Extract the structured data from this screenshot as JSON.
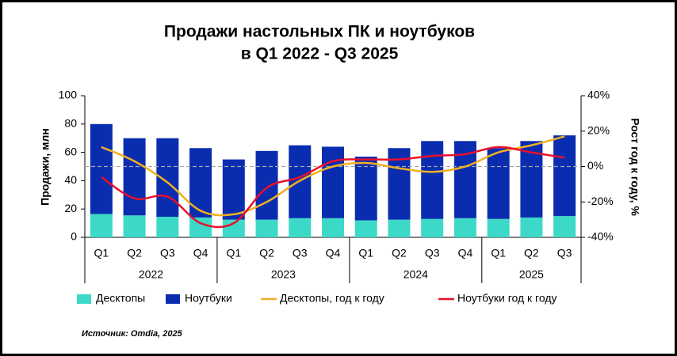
{
  "chart_data": {
    "type": "bar-line",
    "title": [
      "Продажи настольных ПК и ноутбуков",
      "в Q1 2022 - Q3 2025"
    ],
    "ylabel": "Продажи, млн",
    "y2label": "Рост год к году, %",
    "source": "Источник: Omdia, 2025",
    "groups": [
      {
        "label": "2022",
        "categories": [
          "Q1",
          "Q2",
          "Q3",
          "Q4"
        ]
      },
      {
        "label": "2023",
        "categories": [
          "Q1",
          "Q2",
          "Q3",
          "Q4"
        ]
      },
      {
        "label": "2024",
        "categories": [
          "Q1",
          "Q2",
          "Q3",
          "Q4"
        ]
      },
      {
        "label": "2025",
        "categories": [
          "Q1",
          "Q2",
          "Q3"
        ]
      }
    ],
    "ylim": [
      0,
      100
    ],
    "yticks": [
      0,
      20,
      40,
      60,
      80,
      100
    ],
    "y2lim": [
      -40,
      40
    ],
    "y2ticks": [
      {
        "value": -40,
        "label": "-40%"
      },
      {
        "value": -20,
        "label": "-20%"
      },
      {
        "value": 0,
        "label": "0%"
      },
      {
        "value": 20,
        "label": "20%"
      },
      {
        "value": 40,
        "label": "40%"
      }
    ],
    "series": [
      {
        "name": "Десктопы",
        "type": "bar",
        "color": "#3dd9c8",
        "values": [
          16.5,
          15.5,
          14.5,
          14,
          12.5,
          12.5,
          13.5,
          13.5,
          12,
          12.5,
          13,
          13.5,
          13,
          14,
          15
        ]
      },
      {
        "name": "Ноутбуки",
        "type": "bar",
        "color": "#0a2db0",
        "values": [
          63.5,
          54.5,
          55.5,
          49,
          42.5,
          48.5,
          51.5,
          50.5,
          45,
          50.5,
          55,
          54.5,
          50,
          54,
          57
        ]
      },
      {
        "name": "Десктопы, год к году",
        "type": "line",
        "axis": "y2",
        "color": "#f0b020",
        "values": [
          11,
          3,
          -9,
          -25,
          -27,
          -20,
          -8,
          0,
          2,
          -1,
          -3,
          0,
          8,
          12,
          17
        ]
      },
      {
        "name": "Ноутбуки год к году",
        "type": "line",
        "axis": "y2",
        "color": "#e8102a",
        "values": [
          -6,
          -18,
          -17,
          -32,
          -32,
          -12,
          -6,
          3,
          4,
          4,
          6,
          7,
          11,
          8,
          5
        ]
      }
    ]
  }
}
